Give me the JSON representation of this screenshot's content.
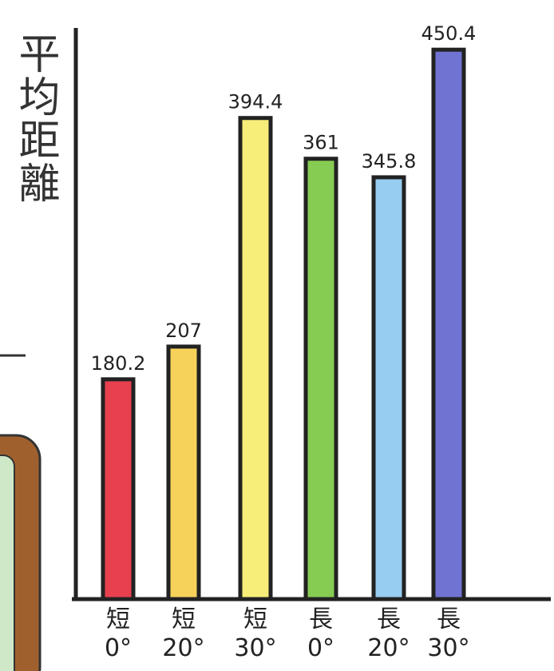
{
  "chart_data": {
    "type": "bar",
    "y_label": "平均距離",
    "categories": [
      "短\n0°",
      "短\n20°",
      "短\n30°",
      "長\n0°",
      "長\n20°",
      "長\n30°"
    ],
    "values": [
      180.2,
      207,
      394.4,
      361,
      345.8,
      450.4
    ],
    "colors": [
      "#e8404f",
      "#f6d25a",
      "#f6ee78",
      "#86cc52",
      "#96cdf0",
      "#7073d2"
    ],
    "ylim": [
      0,
      480
    ]
  }
}
